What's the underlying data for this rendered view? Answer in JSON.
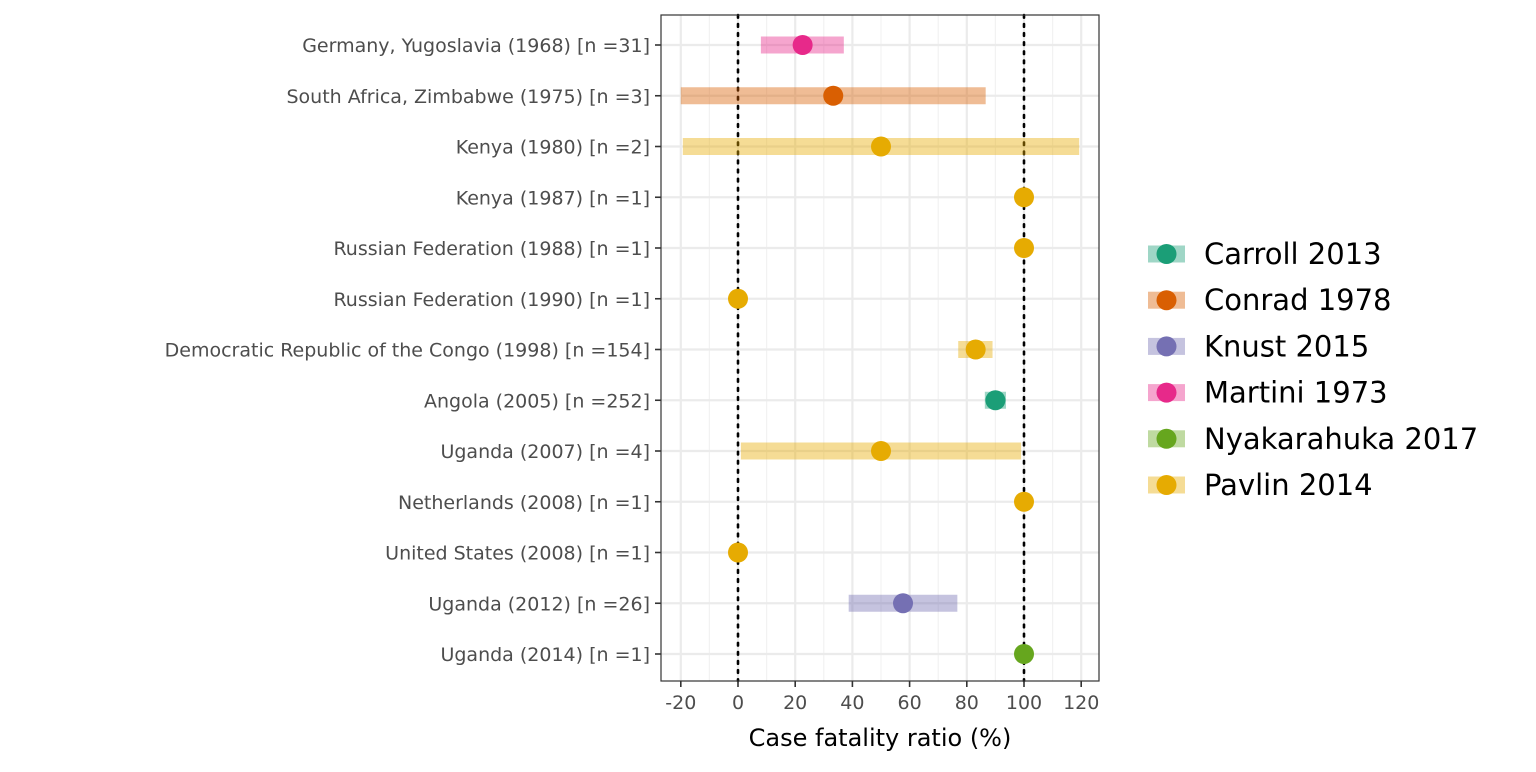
{
  "chart_data": {
    "type": "scatter",
    "subtype": "forest-plot-with-interval-bars",
    "xlabel": "Case fatality ratio (%)",
    "ylabel": "",
    "xlim": [
      -27,
      126
    ],
    "x_ticks": [
      -20,
      0,
      20,
      40,
      60,
      80,
      100,
      120
    ],
    "x_tick_labels": [
      "-20",
      "0",
      "20",
      "40",
      "60",
      "80",
      "100",
      "120"
    ],
    "reference_lines": [
      0,
      100
    ],
    "grid": true,
    "legend_position": "right",
    "series": [
      {
        "name": "Carroll 2013",
        "color": "#1B9E77"
      },
      {
        "name": "Conrad 1978",
        "color": "#D95F02"
      },
      {
        "name": "Knust 2015",
        "color": "#7570B3"
      },
      {
        "name": "Martini 1973",
        "color": "#E7298A"
      },
      {
        "name": "Nyakarahuka 2017",
        "color": "#66A61E"
      },
      {
        "name": "Pavlin 2014",
        "color": "#E6AB02"
      }
    ],
    "rows": [
      {
        "label": "Germany, Yugoslavia (1968) [n =31]",
        "value": 22.6,
        "low": 8,
        "high": 37,
        "series": "Martini 1973"
      },
      {
        "label": "South Africa, Zimbabwe (1975) [n =3]",
        "value": 33.3,
        "low": -20,
        "high": 86.6,
        "series": "Conrad 1978"
      },
      {
        "label": "Kenya (1980) [n =2]",
        "value": 50,
        "low": -19.3,
        "high": 119.3,
        "series": "Pavlin 2014"
      },
      {
        "label": "Kenya (1987) [n =1]",
        "value": 100,
        "low": 100,
        "high": 100,
        "series": "Pavlin 2014"
      },
      {
        "label": "Russian Federation (1988) [n =1]",
        "value": 100,
        "low": 100,
        "high": 100,
        "series": "Pavlin 2014"
      },
      {
        "label": "Russian Federation (1990) [n =1]",
        "value": 0,
        "low": 0,
        "high": 0,
        "series": "Pavlin 2014"
      },
      {
        "label": "Democratic Republic of the Congo (1998) [n =154]",
        "value": 83.1,
        "low": 77,
        "high": 89,
        "series": "Pavlin 2014"
      },
      {
        "label": "Angola (2005) [n =252]",
        "value": 90,
        "low": 86.3,
        "high": 93.7,
        "series": "Carroll 2013"
      },
      {
        "label": "Uganda (2007) [n =4]",
        "value": 50,
        "low": 1,
        "high": 99,
        "series": "Pavlin 2014"
      },
      {
        "label": "Netherlands (2008) [n =1]",
        "value": 100,
        "low": 100,
        "high": 100,
        "series": "Pavlin 2014"
      },
      {
        "label": "United States (2008) [n =1]",
        "value": 0,
        "low": 0,
        "high": 0,
        "series": "Pavlin 2014"
      },
      {
        "label": "Uganda (2012) [n =26]",
        "value": 57.7,
        "low": 38.7,
        "high": 76.7,
        "series": "Knust 2015"
      },
      {
        "label": "Uganda (2014) [n =1]",
        "value": 100,
        "low": 100,
        "high": 100,
        "series": "Nyakarahuka 2017"
      }
    ]
  }
}
